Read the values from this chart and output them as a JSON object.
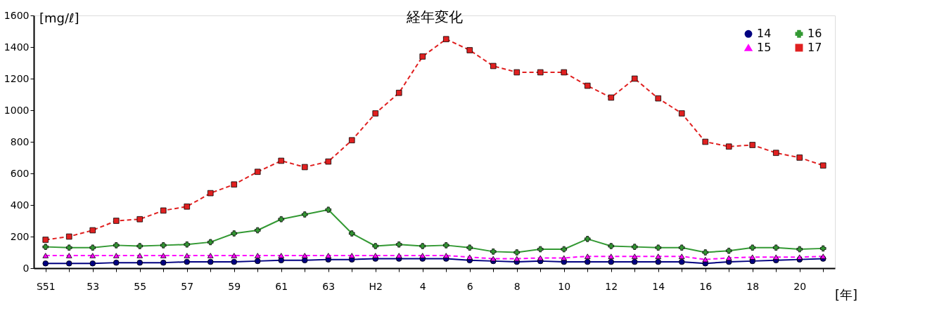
{
  "chart_data": {
    "type": "line",
    "title": "経年変化",
    "ylabel": "[mg/ℓ]",
    "xlabel": "[年]",
    "categories": [
      "S51",
      null,
      "53",
      null,
      "55",
      null,
      "57",
      null,
      "59",
      null,
      "61",
      null,
      "63",
      null,
      "H2",
      null,
      "4",
      null,
      "6",
      null,
      "8",
      null,
      "10",
      null,
      "12",
      null,
      "14",
      null,
      "16",
      null,
      "18",
      null,
      "20",
      null
    ],
    "ylim": [
      0,
      1600
    ],
    "yticks": [
      0,
      200,
      400,
      600,
      800,
      1000,
      1200,
      1400,
      1600
    ],
    "grid": false,
    "legend": "top right",
    "series": [
      {
        "name": "14",
        "color": "#000080",
        "marker": "circle",
        "line_style": "solid",
        "values": [
          30,
          30,
          30,
          35,
          35,
          35,
          40,
          40,
          40,
          45,
          50,
          50,
          55,
          55,
          60,
          60,
          60,
          60,
          50,
          45,
          40,
          45,
          40,
          40,
          40,
          40,
          40,
          40,
          30,
          40,
          45,
          50,
          55,
          60
        ]
      },
      {
        "name": "15",
        "color": "#ff00ff",
        "marker": "triangle",
        "line_style": "dashed",
        "values": [
          80,
          80,
          80,
          80,
          80,
          80,
          80,
          80,
          80,
          80,
          80,
          80,
          80,
          80,
          80,
          80,
          80,
          80,
          70,
          60,
          60,
          65,
          65,
          75,
          75,
          75,
          75,
          75,
          55,
          65,
          70,
          70,
          70,
          75
        ]
      },
      {
        "name": "16",
        "color": "#339933",
        "marker": "cross",
        "line_style": "solid",
        "values": [
          135,
          130,
          130,
          145,
          140,
          145,
          150,
          165,
          220,
          240,
          310,
          340,
          370,
          220,
          140,
          150,
          140,
          145,
          130,
          105,
          100,
          120,
          120,
          185,
          140,
          135,
          130,
          130,
          100,
          110,
          130,
          130,
          120,
          125
        ]
      },
      {
        "name": "17",
        "color": "#e02020",
        "marker": "square",
        "line_style": "dashed",
        "values": [
          180,
          200,
          240,
          300,
          310,
          365,
          390,
          475,
          530,
          610,
          680,
          640,
          675,
          810,
          980,
          1110,
          1340,
          1450,
          1380,
          1280,
          1240,
          1240,
          1240,
          1155,
          1080,
          1200,
          1075,
          980,
          800,
          770,
          780,
          730,
          700,
          650
        ]
      }
    ]
  }
}
